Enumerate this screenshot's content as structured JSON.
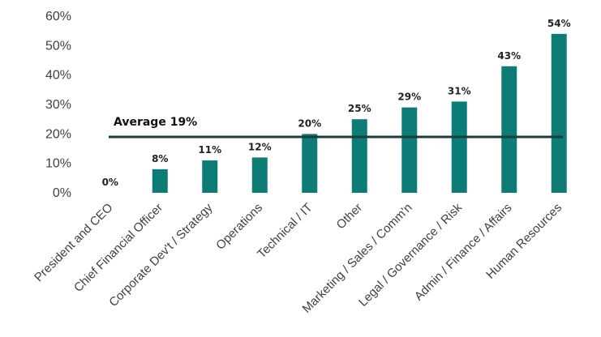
{
  "chart_data": {
    "type": "bar",
    "categories": [
      "President and CEO",
      "Chief Financial Officer",
      "Corporate Dev't / Strategy",
      "Operations",
      "Technical / IT",
      "Other",
      "Marketing / Sales / Comm'n",
      "Legal / Governance / Risk",
      "Admin / Finance / Affairs",
      "Human Resources"
    ],
    "values": [
      0,
      8,
      11,
      12,
      20,
      25,
      29,
      31,
      43,
      54
    ],
    "data_labels": [
      "0%",
      "8%",
      "11%",
      "12%",
      "20%",
      "25%",
      "29%",
      "31%",
      "43%",
      "54%"
    ],
    "y_ticks": [
      "0%",
      "10%",
      "20%",
      "30%",
      "40%",
      "50%",
      "60%"
    ],
    "ylim": [
      0,
      60
    ],
    "average": {
      "value": 19,
      "label": "Average 19%"
    },
    "colors": {
      "bar": "#0e7c76",
      "average_line": "#1c3c3a",
      "axis_text": "#404040"
    },
    "grid": false,
    "title": "",
    "xlabel": "",
    "ylabel": ""
  }
}
